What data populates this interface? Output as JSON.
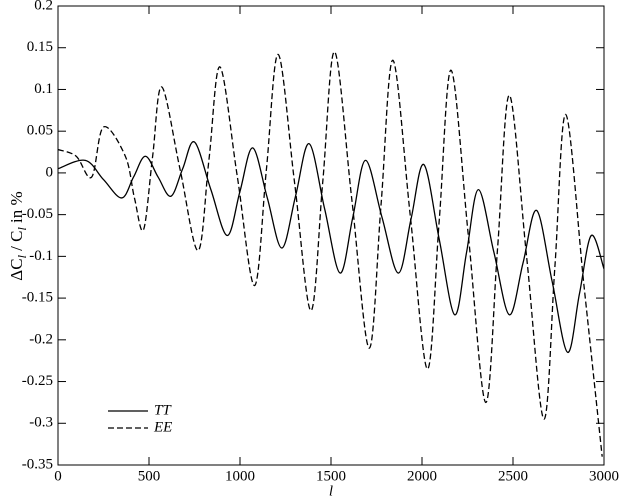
{
  "chart_data": {
    "type": "line",
    "x_label": "l",
    "y_label": [
      "ΔC",
      "l",
      " / C",
      "l",
      " in %"
    ],
    "xlim": [
      0,
      3000
    ],
    "xticks": [
      0,
      500,
      1000,
      1500,
      2000,
      2500,
      3000
    ],
    "ylim": [
      -0.35,
      0.2
    ],
    "yticks": [
      0.2,
      0.15,
      0.1,
      0.05,
      0,
      -0.05,
      -0.1,
      -0.15,
      -0.2,
      -0.25,
      -0.3,
      -0.35
    ],
    "legend": "lower-left",
    "series": [
      {
        "name": "TT",
        "color": "#000000",
        "dash": "solid",
        "x": [
          0,
          150,
          250,
          350,
          415,
          480,
          550,
          620,
          685,
          750,
          840,
          930,
          1000,
          1070,
          1150,
          1230,
          1305,
          1380,
          1465,
          1550,
          1620,
          1690,
          1780,
          1870,
          1940,
          2010,
          2095,
          2180,
          2245,
          2310,
          2395,
          2480,
          2555,
          2630,
          2715,
          2800,
          2865,
          2930,
          3000
        ],
        "values": [
          0.005,
          0.015,
          -0.008,
          -0.03,
          -0.005,
          0.02,
          -0.005,
          -0.028,
          0.005,
          0.037,
          -0.02,
          -0.075,
          -0.022,
          0.03,
          -0.03,
          -0.09,
          -0.028,
          0.035,
          -0.043,
          -0.12,
          -0.053,
          0.015,
          -0.053,
          -0.12,
          -0.055,
          0.01,
          -0.08,
          -0.17,
          -0.095,
          -0.02,
          -0.095,
          -0.17,
          -0.108,
          -0.045,
          -0.13,
          -0.215,
          -0.145,
          -0.075,
          -0.115
        ]
      },
      {
        "name": "EE",
        "color": "#000000",
        "dash": "dashed",
        "x": [
          0,
          100,
          185,
          250,
          370,
          420,
          470,
          520,
          570,
          670,
          770,
          830,
          890,
          985,
          1080,
          1145,
          1210,
          1300,
          1390,
          1455,
          1520,
          1615,
          1710,
          1775,
          1840,
          1935,
          2030,
          2095,
          2160,
          2255,
          2350,
          2415,
          2480,
          2575,
          2670,
          2730,
          2790,
          2890,
          2990
        ],
        "values": [
          0.028,
          0.02,
          -0.005,
          0.055,
          0.02,
          -0.03,
          -0.068,
          0.02,
          0.103,
          0.005,
          -0.093,
          0.017,
          0.127,
          -0.004,
          -0.135,
          0.004,
          0.142,
          -0.012,
          -0.165,
          -0.01,
          0.145,
          -0.033,
          -0.21,
          -0.038,
          0.135,
          -0.05,
          -0.235,
          -0.056,
          0.123,
          -0.076,
          -0.275,
          -0.091,
          0.093,
          -0.101,
          -0.295,
          -0.113,
          0.07,
          -0.135,
          -0.34
        ]
      }
    ]
  }
}
